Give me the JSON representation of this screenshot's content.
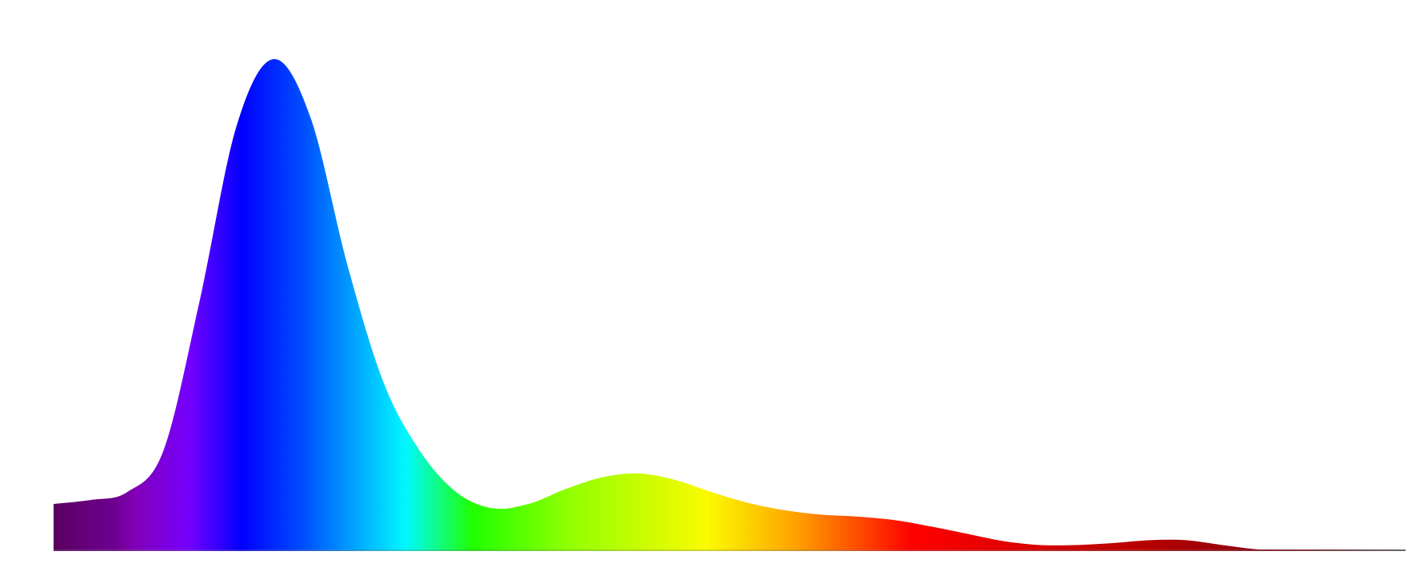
{
  "chart_data": {
    "type": "area",
    "values": [
      0.093,
      0.101,
      0.117,
      0.201,
      0.508,
      0.862,
      1.0,
      0.881,
      0.583,
      0.341,
      0.201,
      0.117,
      0.084,
      0.093,
      0.123,
      0.147,
      0.155,
      0.142,
      0.117,
      0.095,
      0.08,
      0.071,
      0.067,
      0.06,
      0.047,
      0.032,
      0.017,
      0.009,
      0.009,
      0.013,
      0.019,
      0.019,
      0.009,
      0,
      0,
      0,
      0,
      0
    ],
    "ylim": [
      0,
      1
    ],
    "grid": false
  }
}
